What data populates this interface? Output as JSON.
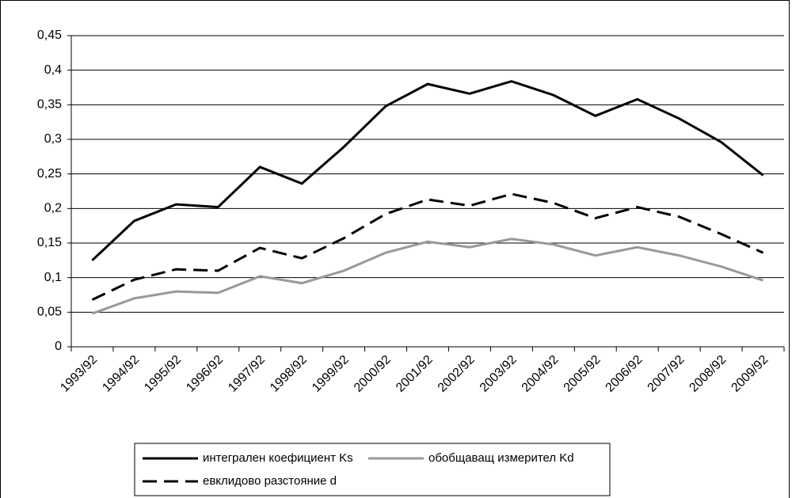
{
  "chart_data": {
    "type": "line",
    "categories": [
      "1993/92",
      "1994/92",
      "1995/92",
      "1996/92",
      "1997/92",
      "1998/92",
      "1999/92",
      "2000/92",
      "2001/92",
      "2002/92",
      "2003/92",
      "2004/92",
      "2005/92",
      "2006/92",
      "2007/92",
      "2008/92",
      "2009/92"
    ],
    "series": [
      {
        "name": "интегрален коефициент Ks",
        "color": "#000000",
        "dash": false,
        "values": [
          0.125,
          0.182,
          0.206,
          0.202,
          0.26,
          0.236,
          0.289,
          0.348,
          0.38,
          0.366,
          0.384,
          0.364,
          0.334,
          0.358,
          0.33,
          0.296,
          0.248
        ]
      },
      {
        "name": "обобщаващ измерител Kd",
        "color": "#999999",
        "dash": false,
        "values": [
          0.048,
          0.07,
          0.08,
          0.078,
          0.102,
          0.092,
          0.11,
          0.136,
          0.152,
          0.144,
          0.156,
          0.148,
          0.132,
          0.144,
          0.132,
          0.116,
          0.096
        ]
      },
      {
        "name": "евклидово разстояние d",
        "color": "#000000",
        "dash": true,
        "values": [
          0.068,
          0.097,
          0.112,
          0.11,
          0.143,
          0.128,
          0.157,
          0.192,
          0.213,
          0.204,
          0.221,
          0.208,
          0.186,
          0.202,
          0.188,
          0.163,
          0.136
        ]
      }
    ],
    "ylim": [
      0,
      0.45
    ],
    "yticks": [
      0,
      {
        "value": 0.05,
        "label": "0,05"
      },
      {
        "value": 0.1,
        "label": "0,1"
      },
      {
        "value": 0.15,
        "label": "0,15"
      },
      {
        "value": 0.2,
        "label": "0,2"
      },
      {
        "value": 0.25,
        "label": "0,25"
      },
      {
        "value": 0.3,
        "label": "0,3"
      },
      {
        "value": 0.35,
        "label": "0,35"
      },
      {
        "value": 0.4,
        "label": "0,4"
      },
      {
        "value": 0.45,
        "label": "0,45"
      }
    ],
    "grid": true,
    "legend": "bottom"
  }
}
